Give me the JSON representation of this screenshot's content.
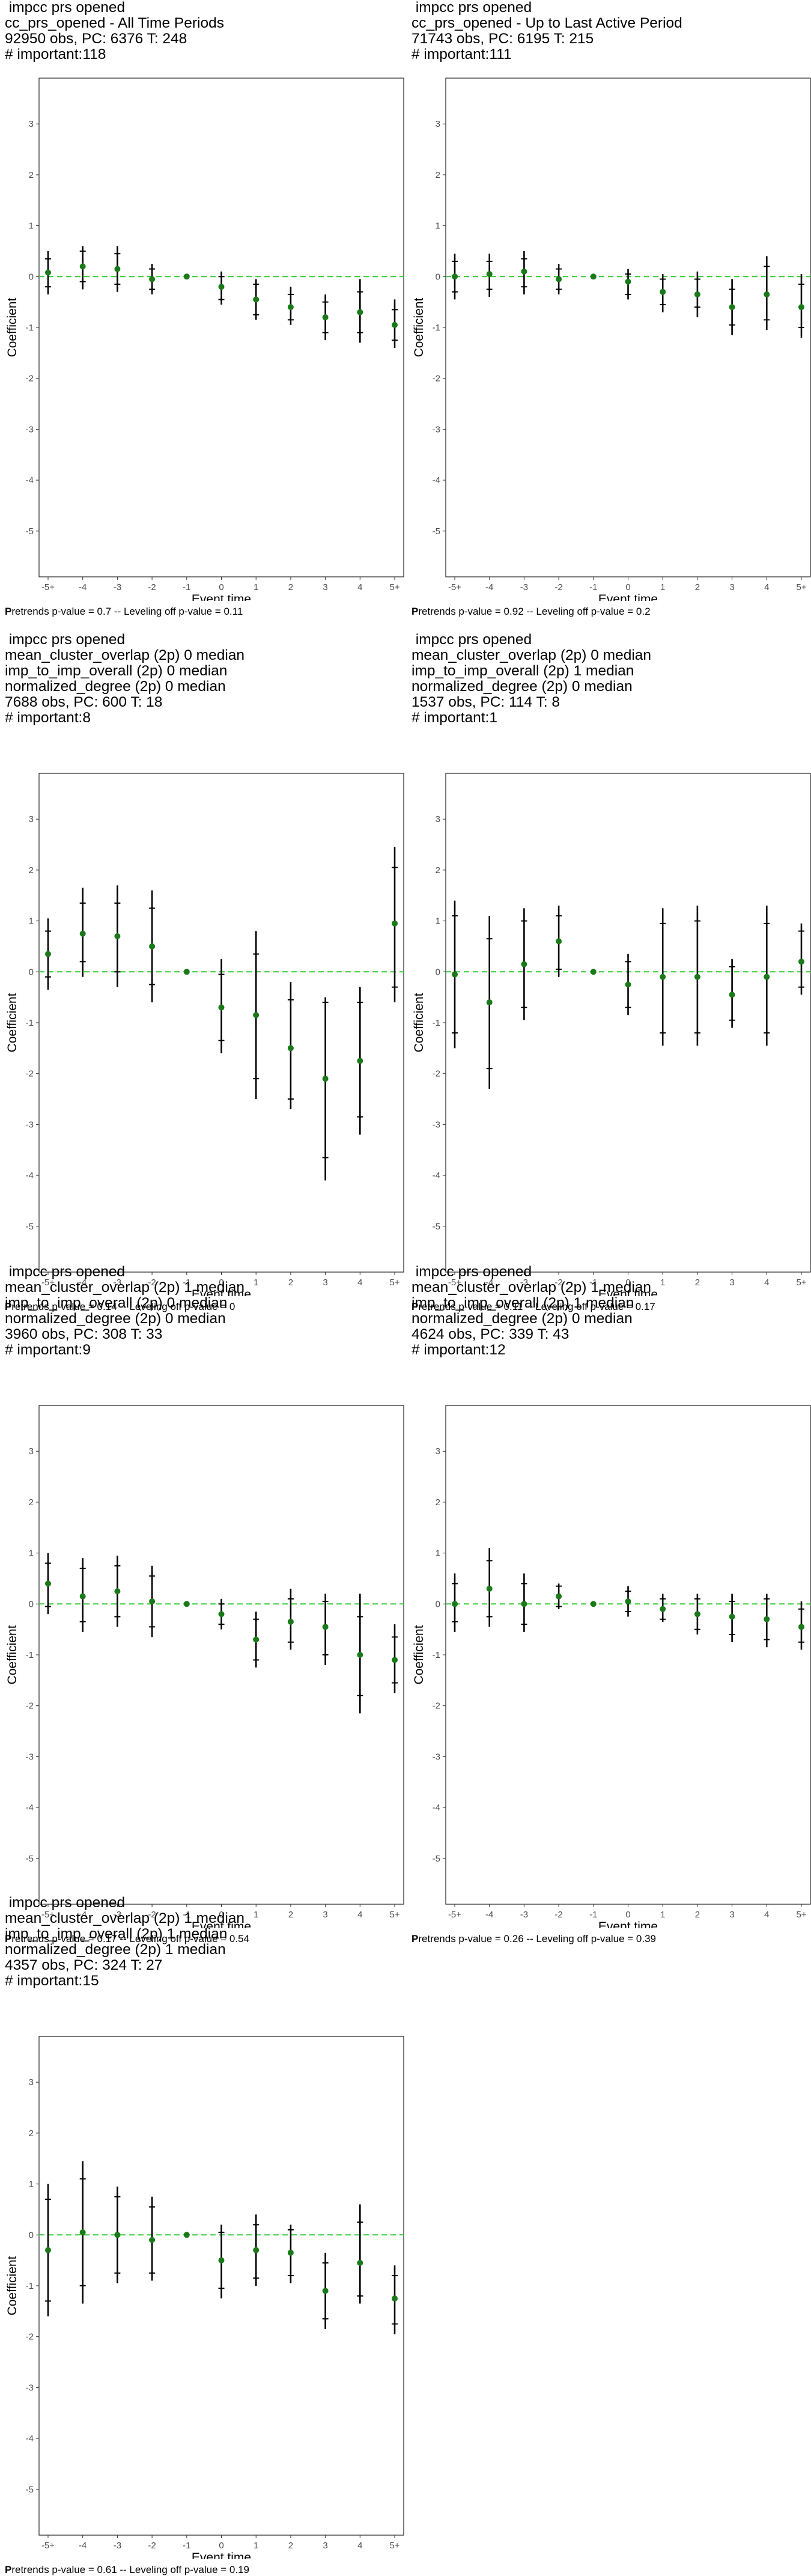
{
  "panels": [
    {
      "title_lines": [
        " impcc prs opened",
        "cc_prs_opened - All Time Periods",
        "92950 obs, PC: 6376 T: 248",
        "# important:118"
      ],
      "footer_bold": "P",
      "footer_rest": "retrends p-value = 0.7 -- Leveling off p-value = 0.11"
    },
    {
      "title_lines": [
        " impcc prs opened",
        "cc_prs_opened - Up to Last Active Period",
        "71743 obs, PC: 6195 T: 215",
        "# important:111"
      ],
      "footer_bold": "P",
      "footer_rest": "retrends p-value = 0.92 -- Leveling off p-value = 0.2"
    },
    {
      "title_lines": [
        " impcc prs opened",
        "mean_cluster_overlap (2p) 0 median",
        "imp_to_imp_overall (2p) 0 median",
        "normalized_degree (2p) 0 median",
        "7688 obs, PC: 600 T: 18",
        "# important:8"
      ],
      "footer_bold": "P",
      "footer_rest": "retrends p-value = 0.14 -- Leveling off p-value = 0"
    },
    {
      "title_lines": [
        " impcc prs opened",
        "mean_cluster_overlap (2p) 0 median",
        "imp_to_imp_overall (2p) 1 median",
        "normalized_degree (2p) 0 median",
        "1537 obs, PC: 114 T: 8",
        "# important:1"
      ],
      "footer_bold": "P",
      "footer_rest": "retrends p-value = 0.11 -- Leveling off p-value = 0.17"
    },
    {
      "title_lines": [
        " impcc prs opened",
        "mean_cluster_overlap (2p) 1 median",
        "imp_to_imp_overall (2p) 0 median",
        "normalized_degree (2p) 0 median",
        "3960 obs, PC: 308 T: 33",
        "# important:9"
      ],
      "footer_bold": "P",
      "footer_rest": "retrends p-value = 0.17 -- Leveling off p-value = 0.54"
    },
    {
      "title_lines": [
        " impcc prs opened",
        "mean_cluster_overlap (2p) 1 median",
        "imp_to_imp_overall (2p) 1 median",
        "normalized_degree (2p) 0 median",
        "4624 obs, PC: 339 T: 43",
        "# important:12"
      ],
      "footer_bold": "P",
      "footer_rest": "retrends p-value = 0.26 -- Leveling off p-value = 0.39"
    },
    {
      "title_lines": [
        " impcc prs opened",
        "mean_cluster_overlap (2p) 1 median",
        "imp_to_imp_overall (2p) 1 median",
        "normalized_degree (2p) 1 median",
        "4357 obs, PC: 324 T: 27",
        "# important:15"
      ],
      "footer_bold": "P",
      "footer_rest": "retrends p-value = 0.61 -- Leveling off p-value = 0.19"
    }
  ],
  "colors": {
    "point": "#1a7a1a",
    "zero_line": "#33cc33",
    "interval": "#000000",
    "frame": "#333333"
  },
  "chart_data": [
    {
      "type": "scatter",
      "xlabel": "Event time",
      "ylabel": "Coefficient",
      "categories": [
        "-5+",
        "-4",
        "-3",
        "-2",
        "-1",
        "0",
        "1",
        "2",
        "3",
        "4",
        "5+"
      ],
      "y_ticks": [
        3,
        2,
        1,
        0,
        -1,
        -2,
        -3,
        -4,
        -5
      ],
      "ylim": [
        -5.9,
        3.9
      ],
      "estimates": [
        0.08,
        0.2,
        0.15,
        -0.05,
        0.0,
        -0.2,
        -0.45,
        -0.6,
        -0.8,
        -0.7,
        -0.95
      ],
      "ci_outer_low": [
        -0.35,
        -0.25,
        -0.3,
        -0.35,
        0.0,
        -0.55,
        -0.85,
        -0.95,
        -1.25,
        -1.3,
        -1.4
      ],
      "ci_outer_high": [
        0.5,
        0.6,
        0.6,
        0.25,
        0.0,
        0.1,
        -0.05,
        -0.2,
        -0.35,
        -0.05,
        -0.45
      ],
      "ci_inner_low": [
        -0.2,
        -0.1,
        -0.15,
        -0.25,
        0.0,
        -0.45,
        -0.75,
        -0.85,
        -1.1,
        -1.1,
        -1.25
      ],
      "ci_inner_high": [
        0.35,
        0.5,
        0.45,
        0.15,
        0.0,
        0.0,
        -0.15,
        -0.35,
        -0.5,
        -0.3,
        -0.65
      ],
      "zero_line": 0,
      "grid": false
    },
    {
      "type": "scatter",
      "xlabel": "Event time",
      "ylabel": "Coefficient",
      "categories": [
        "-5+",
        "-4",
        "-3",
        "-2",
        "-1",
        "0",
        "1",
        "2",
        "3",
        "4",
        "5+"
      ],
      "y_ticks": [
        3,
        2,
        1,
        0,
        -1,
        -2,
        -3,
        -4,
        -5
      ],
      "ylim": [
        -5.9,
        3.9
      ],
      "estimates": [
        0.0,
        0.05,
        0.1,
        -0.05,
        0.0,
        -0.1,
        -0.3,
        -0.35,
        -0.6,
        -0.35,
        -0.6
      ],
      "ci_outer_low": [
        -0.45,
        -0.4,
        -0.35,
        -0.35,
        0.0,
        -0.45,
        -0.7,
        -0.8,
        -1.15,
        -1.05,
        -1.2
      ],
      "ci_outer_high": [
        0.45,
        0.45,
        0.5,
        0.25,
        0.0,
        0.15,
        0.05,
        0.1,
        -0.05,
        0.4,
        0.05
      ],
      "ci_inner_low": [
        -0.3,
        -0.25,
        -0.2,
        -0.25,
        0.0,
        -0.35,
        -0.55,
        -0.6,
        -0.95,
        -0.85,
        -1.0
      ],
      "ci_inner_high": [
        0.3,
        0.3,
        0.35,
        0.15,
        0.0,
        0.05,
        -0.05,
        -0.05,
        -0.25,
        0.2,
        -0.15
      ],
      "zero_line": 0,
      "grid": false
    },
    {
      "type": "scatter",
      "xlabel": "Event time",
      "ylabel": "Coefficient",
      "categories": [
        "-5+",
        "-4",
        "-3",
        "-2",
        "-1",
        "0",
        "1",
        "2",
        "3",
        "4",
        "5+"
      ],
      "y_ticks": [
        3,
        2,
        1,
        0,
        -1,
        -2,
        -3,
        -4,
        -5
      ],
      "ylim": [
        -5.9,
        3.9
      ],
      "estimates": [
        0.35,
        0.75,
        0.7,
        0.5,
        0.0,
        -0.7,
        -0.85,
        -1.5,
        -2.1,
        -1.75,
        0.95
      ],
      "ci_outer_low": [
        -0.35,
        -0.1,
        -0.3,
        -0.6,
        0.0,
        -1.6,
        -2.5,
        -2.7,
        -4.1,
        -3.2,
        -0.6
      ],
      "ci_outer_high": [
        1.05,
        1.65,
        1.7,
        1.6,
        0.0,
        0.25,
        0.8,
        -0.2,
        -0.5,
        -0.3,
        2.45
      ],
      "ci_inner_low": [
        -0.1,
        0.2,
        0.0,
        -0.25,
        0.0,
        -1.35,
        -2.1,
        -2.5,
        -3.65,
        -2.85,
        -0.3
      ],
      "ci_inner_high": [
        0.8,
        1.35,
        1.35,
        1.25,
        0.0,
        -0.05,
        0.35,
        -0.55,
        -0.6,
        -0.6,
        2.05
      ],
      "zero_line": 0,
      "grid": false
    },
    {
      "type": "scatter",
      "xlabel": "Event time",
      "ylabel": "Coefficient",
      "categories": [
        "-5+",
        "-4",
        "-3",
        "-2",
        "-1",
        "0",
        "1",
        "2",
        "3",
        "4",
        "5+"
      ],
      "y_ticks": [
        3,
        2,
        1,
        0,
        -1,
        -2,
        -3,
        -4,
        -5
      ],
      "ylim": [
        -5.9,
        3.9
      ],
      "estimates": [
        -0.05,
        -0.6,
        0.15,
        0.6,
        0.0,
        -0.25,
        -0.1,
        -0.1,
        -0.45,
        -0.1,
        0.2
      ],
      "ci_outer_low": [
        -1.5,
        -2.3,
        -0.95,
        -0.1,
        0.0,
        -0.85,
        -1.45,
        -1.45,
        -1.1,
        -1.45,
        -0.45
      ],
      "ci_outer_high": [
        1.4,
        1.1,
        1.25,
        1.3,
        0.0,
        0.35,
        1.25,
        1.3,
        0.25,
        1.3,
        0.95
      ],
      "ci_inner_low": [
        -1.2,
        -1.9,
        -0.7,
        0.05,
        0.0,
        -0.7,
        -1.2,
        -1.2,
        -0.95,
        -1.2,
        -0.3
      ],
      "ci_inner_high": [
        1.1,
        0.65,
        1.0,
        1.1,
        0.0,
        0.2,
        0.95,
        1.0,
        0.1,
        0.95,
        0.8
      ],
      "zero_line": 0,
      "grid": false
    },
    {
      "type": "scatter",
      "xlabel": "Event time",
      "ylabel": "Coefficient",
      "categories": [
        "-5+",
        "-4",
        "-3",
        "-2",
        "-1",
        "0",
        "1",
        "2",
        "3",
        "4",
        "5+"
      ],
      "y_ticks": [
        3,
        2,
        1,
        0,
        -1,
        -2,
        -3,
        -4,
        -5
      ],
      "ylim": [
        -5.9,
        3.9
      ],
      "estimates": [
        0.4,
        0.15,
        0.25,
        0.05,
        0.0,
        -0.2,
        -0.7,
        -0.35,
        -0.45,
        -1.0,
        -1.1
      ],
      "ci_outer_low": [
        -0.2,
        -0.55,
        -0.45,
        -0.65,
        0.0,
        -0.5,
        -1.25,
        -0.9,
        -1.2,
        -2.15,
        -1.75
      ],
      "ci_outer_high": [
        1.0,
        0.9,
        0.95,
        0.75,
        0.0,
        0.1,
        -0.15,
        0.3,
        0.2,
        0.2,
        -0.4
      ],
      "ci_inner_low": [
        -0.05,
        -0.35,
        -0.25,
        -0.45,
        0.0,
        -0.4,
        -1.1,
        -0.75,
        -1.0,
        -1.8,
        -1.55
      ],
      "ci_inner_high": [
        0.8,
        0.7,
        0.75,
        0.55,
        0.0,
        0.0,
        -0.3,
        0.1,
        0.05,
        -0.25,
        -0.65
      ],
      "zero_line": 0,
      "grid": false
    },
    {
      "type": "scatter",
      "xlabel": "Event time",
      "ylabel": "Coefficient",
      "categories": [
        "-5+",
        "-4",
        "-3",
        "-2",
        "-1",
        "0",
        "1",
        "2",
        "3",
        "4",
        "5+"
      ],
      "y_ticks": [
        3,
        2,
        1,
        0,
        -1,
        -2,
        -3,
        -4,
        -5
      ],
      "ylim": [
        -5.9,
        3.9
      ],
      "estimates": [
        0.0,
        0.3,
        0.0,
        0.15,
        0.0,
        0.05,
        -0.1,
        -0.2,
        -0.25,
        -0.3,
        -0.45
      ],
      "ci_outer_low": [
        -0.55,
        -0.45,
        -0.55,
        -0.1,
        0.0,
        -0.25,
        -0.35,
        -0.6,
        -0.75,
        -0.85,
        -0.9
      ],
      "ci_outer_high": [
        0.6,
        1.1,
        0.6,
        0.4,
        0.0,
        0.35,
        0.2,
        0.2,
        0.2,
        0.2,
        0.05
      ],
      "ci_inner_low": [
        -0.35,
        -0.25,
        -0.4,
        -0.05,
        0.0,
        -0.15,
        -0.3,
        -0.5,
        -0.6,
        -0.7,
        -0.75
      ],
      "ci_inner_high": [
        0.4,
        0.85,
        0.4,
        0.35,
        0.0,
        0.25,
        0.1,
        0.1,
        0.05,
        0.1,
        -0.1
      ],
      "zero_line": 0,
      "grid": false
    },
    {
      "type": "scatter",
      "xlabel": "Event time",
      "ylabel": "Coefficient",
      "categories": [
        "-5+",
        "-4",
        "-3",
        "-2",
        "-1",
        "0",
        "1",
        "2",
        "3",
        "4",
        "5+"
      ],
      "y_ticks": [
        3,
        2,
        1,
        0,
        -1,
        -2,
        -3,
        -4,
        -5
      ],
      "ylim": [
        -5.9,
        3.9
      ],
      "estimates": [
        -0.3,
        0.05,
        0.0,
        -0.1,
        0.0,
        -0.5,
        -0.3,
        -0.35,
        -1.1,
        -0.55,
        -1.25
      ],
      "ci_outer_low": [
        -1.6,
        -1.35,
        -0.95,
        -0.9,
        0.0,
        -1.25,
        -1.0,
        -0.95,
        -1.85,
        -1.35,
        -1.95
      ],
      "ci_outer_high": [
        1.0,
        1.45,
        0.95,
        0.75,
        0.0,
        0.2,
        0.4,
        0.2,
        -0.35,
        0.6,
        -0.6
      ],
      "ci_inner_low": [
        -1.3,
        -1.0,
        -0.75,
        -0.75,
        0.0,
        -1.05,
        -0.85,
        -0.8,
        -1.65,
        -1.2,
        -1.75
      ],
      "ci_inner_high": [
        0.7,
        1.1,
        0.75,
        0.55,
        0.0,
        0.05,
        0.2,
        0.1,
        -0.55,
        0.25,
        -0.8
      ],
      "zero_line": 0,
      "grid": false
    }
  ]
}
